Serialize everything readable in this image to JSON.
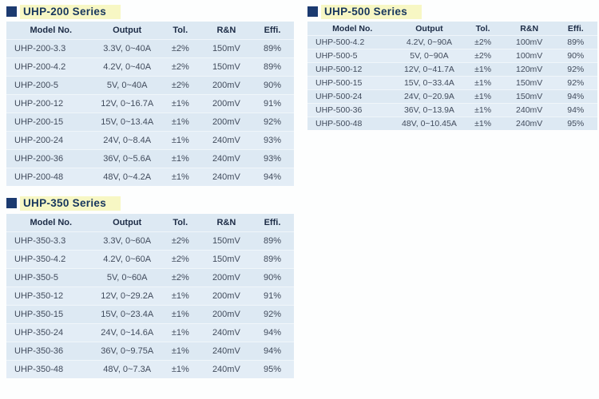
{
  "colors": {
    "bullet_navy": "#1b3a70",
    "title_text": "#17365d",
    "title_highlight": "#f7f7c4",
    "table_bg": "#dde9f3",
    "table_bg_alt": "#e3edf6",
    "header_text": "#1c2b45",
    "body_text": "#414b5c"
  },
  "columns": [
    "Model No.",
    "Output",
    "Tol.",
    "R&N",
    "Effi."
  ],
  "tables": [
    {
      "title": "UHP-200 Series",
      "rows": [
        [
          "UHP-200-3.3",
          "3.3V, 0~40A",
          "±2%",
          "150mV",
          "89%"
        ],
        [
          "UHP-200-4.2",
          "4.2V, 0~40A",
          "±2%",
          "150mV",
          "89%"
        ],
        [
          "UHP-200-5",
          "5V, 0~40A",
          "±2%",
          "200mV",
          "90%"
        ],
        [
          "UHP-200-12",
          "12V, 0~16.7A",
          "±1%",
          "200mV",
          "91%"
        ],
        [
          "UHP-200-15",
          "15V, 0~13.4A",
          "±1%",
          "200mV",
          "92%"
        ],
        [
          "UHP-200-24",
          "24V, 0~8.4A",
          "±1%",
          "240mV",
          "93%"
        ],
        [
          "UHP-200-36",
          "36V, 0~5.6A",
          "±1%",
          "240mV",
          "93%"
        ],
        [
          "UHP-200-48",
          "48V, 0~4.2A",
          "±1%",
          "240mV",
          "94%"
        ]
      ]
    },
    {
      "title": "UHP-350 Series",
      "rows": [
        [
          "UHP-350-3.3",
          "3.3V, 0~60A",
          "±2%",
          "150mV",
          "89%"
        ],
        [
          "UHP-350-4.2",
          "4.2V, 0~60A",
          "±2%",
          "150mV",
          "89%"
        ],
        [
          "UHP-350-5",
          "5V, 0~60A",
          "±2%",
          "200mV",
          "90%"
        ],
        [
          "UHP-350-12",
          "12V, 0~29.2A",
          "±1%",
          "200mV",
          "91%"
        ],
        [
          "UHP-350-15",
          "15V, 0~23.4A",
          "±1%",
          "200mV",
          "92%"
        ],
        [
          "UHP-350-24",
          "24V, 0~14.6A",
          "±1%",
          "240mV",
          "94%"
        ],
        [
          "UHP-350-36",
          "36V, 0~9.75A",
          "±1%",
          "240mV",
          "94%"
        ],
        [
          "UHP-350-48",
          "48V, 0~7.3A",
          "±1%",
          "240mV",
          "95%"
        ]
      ]
    },
    {
      "title": "UHP-500 Series",
      "rows": [
        [
          "UHP-500-4.2",
          "4.2V, 0~90A",
          "±2%",
          "100mV",
          "89%"
        ],
        [
          "UHP-500-5",
          "5V, 0~90A",
          "±2%",
          "100mV",
          "90%"
        ],
        [
          "UHP-500-12",
          "12V, 0~41.7A",
          "±1%",
          "120mV",
          "92%"
        ],
        [
          "UHP-500-15",
          "15V, 0~33.4A",
          "±1%",
          "150mV",
          "92%"
        ],
        [
          "UHP-500-24",
          "24V, 0~20.9A",
          "±1%",
          "150mV",
          "94%"
        ],
        [
          "UHP-500-36",
          "36V, 0~13.9A",
          "±1%",
          "240mV",
          "94%"
        ],
        [
          "UHP-500-48",
          "48V, 0~10.45A",
          "±1%",
          "240mV",
          "95%"
        ]
      ]
    }
  ]
}
